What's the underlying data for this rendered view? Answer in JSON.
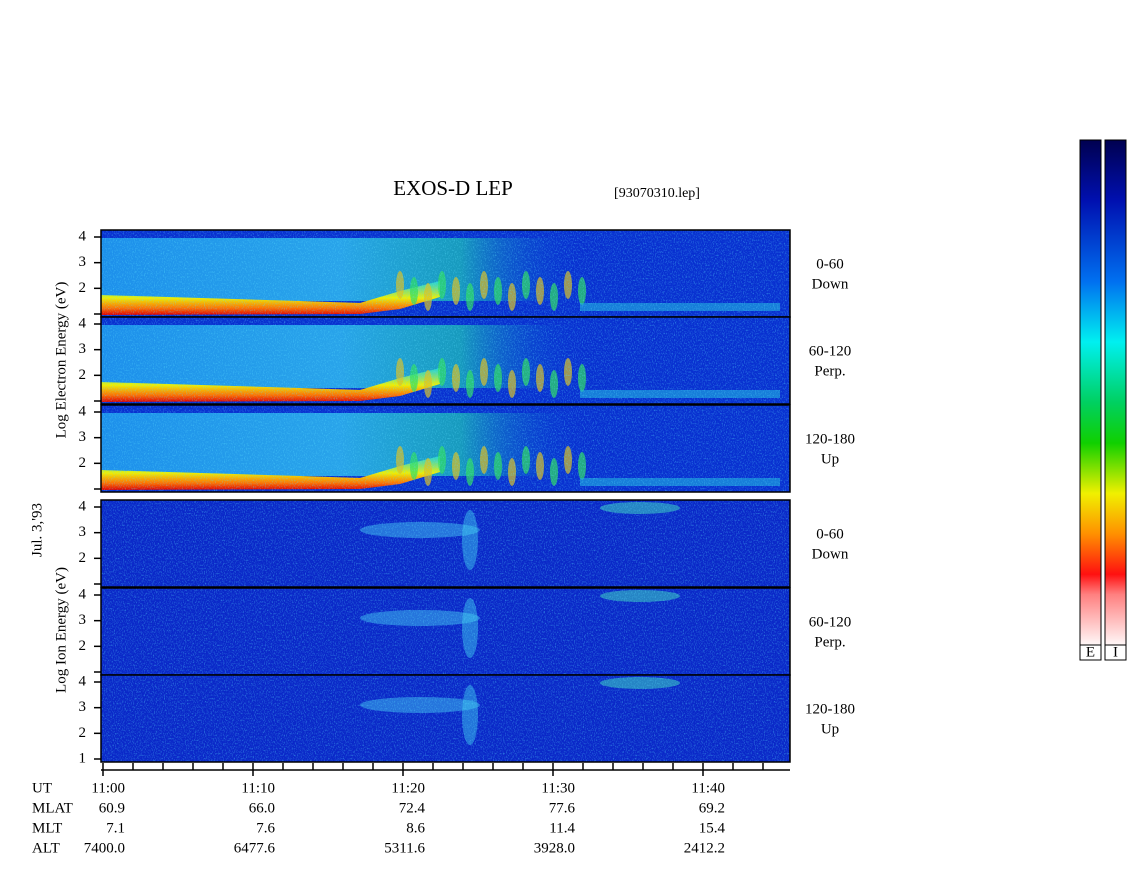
{
  "header": {
    "title": "EXOS-D LEP",
    "file": "[93070310.lep]"
  },
  "left_labels": {
    "electron": "Log Electron Energy (eV)",
    "date": "Jul. 3,'93",
    "ion": "Log Ion Energy (eV)"
  },
  "panels": [
    {
      "range": "0-60",
      "direction": "Down",
      "ticks": [
        "4",
        "3",
        "2"
      ]
    },
    {
      "range": "60-120",
      "direction": "Perp.",
      "ticks": [
        "4",
        "3",
        "2"
      ]
    },
    {
      "range": "120-180",
      "direction": "Up",
      "ticks": [
        "4",
        "3",
        "2"
      ]
    },
    {
      "range": "0-60",
      "direction": "Down",
      "ticks": [
        "4",
        "3",
        "2"
      ]
    },
    {
      "range": "60-120",
      "direction": "Perp.",
      "ticks": [
        "4",
        "3",
        "2"
      ]
    },
    {
      "range": "120-180",
      "direction": "Up",
      "ticks": [
        "4",
        "3",
        "2",
        "1"
      ]
    }
  ],
  "time_axis": {
    "rows": [
      {
        "label": "UT",
        "values": [
          "11:00",
          "11:10",
          "11:20",
          "11:30",
          "11:40"
        ]
      },
      {
        "label": "MLAT",
        "values": [
          "60.9",
          "66.0",
          "72.4",
          "77.6",
          "69.2"
        ]
      },
      {
        "label": "MLT",
        "values": [
          "7.1",
          "7.6",
          "8.6",
          "11.4",
          "15.4"
        ]
      },
      {
        "label": "ALT",
        "values": [
          "7400.0",
          "6477.6",
          "5311.6",
          "3928.0",
          "2412.2"
        ]
      }
    ]
  },
  "colorbar": {
    "labels": [
      "E",
      "I"
    ]
  }
}
